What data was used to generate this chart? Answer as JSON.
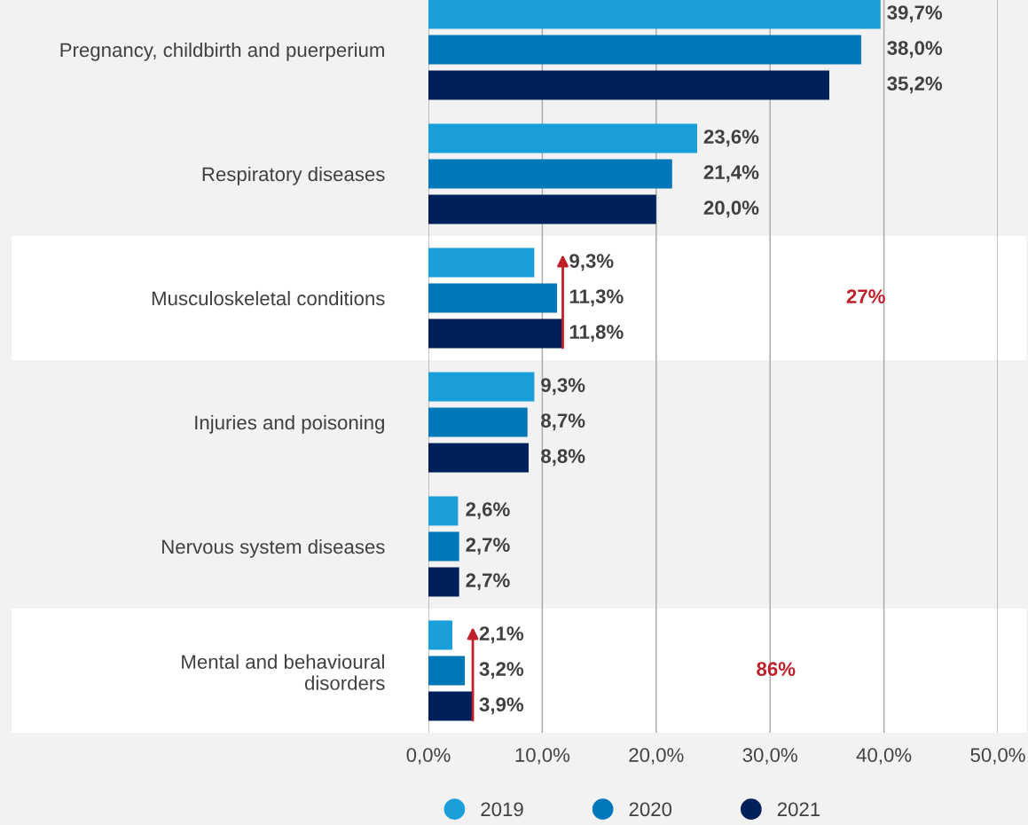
{
  "chart_data": {
    "type": "bar",
    "orientation": "horizontal",
    "categories": [
      "Pregnancy, childbirth and puerperium",
      "Respiratory diseases",
      "Musculoskeletal conditions",
      "Injuries and poisoning",
      "Nervous system diseases",
      "Mental and behavioural\ndisorders"
    ],
    "series": [
      {
        "name": "2019",
        "color": "#1a9fdb",
        "values": [
          39.7,
          23.6,
          9.3,
          9.3,
          2.6,
          2.1
        ],
        "value_labels": [
          "39,7%",
          "23,6%",
          "9,3%",
          "9,3%",
          "2,6%",
          "2,1%"
        ]
      },
      {
        "name": "2020",
        "color": "#0077bb",
        "values": [
          38.0,
          21.4,
          11.3,
          8.7,
          2.7,
          3.2
        ],
        "value_labels": [
          "38,0%",
          "21,4%",
          "11,3%",
          "8,7%",
          "2,7%",
          "3,2%"
        ]
      },
      {
        "name": "2021",
        "color": "#00205b",
        "values": [
          35.2,
          20.0,
          11.8,
          8.8,
          2.7,
          3.9
        ],
        "value_labels": [
          "35,2%",
          "20,0%",
          "11,8%",
          "8,8%",
          "2,7%",
          "3,9%"
        ]
      }
    ],
    "xlim": [
      0,
      50
    ],
    "xticks": [
      {
        "value": 0,
        "label": "0,0%"
      },
      {
        "value": 10,
        "label": "10,0%"
      },
      {
        "value": 20,
        "label": "20,0%"
      },
      {
        "value": 30,
        "label": "30,0%"
      },
      {
        "value": 40,
        "label": "40,0%"
      },
      {
        "value": 50,
        "label": "50,0%"
      }
    ],
    "grid": "x",
    "legend": "bottom",
    "bands": [
      {
        "axis": "y",
        "from": "Musculoskeletal conditions",
        "to": "Musculoskeletal conditions",
        "color": "#ffffff"
      },
      {
        "axis": "y",
        "from": "Mental and behavioural\ndisorders",
        "to": "Mental and behavioural\ndisorders",
        "color": "#ffffff"
      }
    ],
    "annotations": [
      "27%",
      "86%"
    ]
  }
}
